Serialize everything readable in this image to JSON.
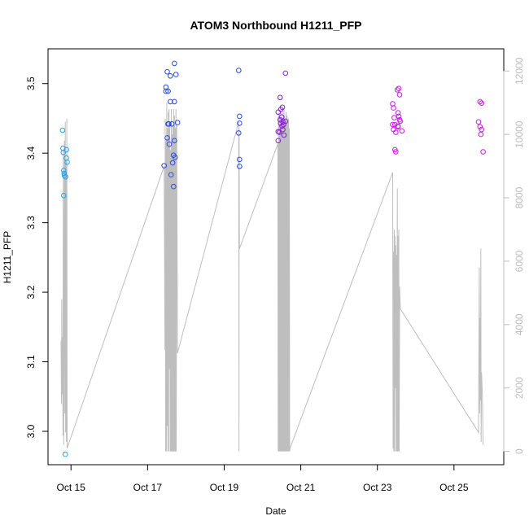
{
  "chart_data": {
    "type": "scatter",
    "title": "ATOM3 Northbound H1211_PFP",
    "xlabel": "Date",
    "ylabel": "H1211_PFP",
    "x_date_range": [
      "2016-10-14T09:36",
      "2016-10-26T07:12"
    ],
    "ylim": [
      2.952,
      3.55
    ],
    "y2lim": [
      -420,
      12700
    ],
    "x_tick_labels": [
      {
        "date": "2016-10-15",
        "label": "Oct 15"
      },
      {
        "date": "2016-10-17",
        "label": "Oct 17"
      },
      {
        "date": "2016-10-19",
        "label": "Oct 19"
      },
      {
        "date": "2016-10-21",
        "label": "Oct 21"
      },
      {
        "date": "2016-10-23",
        "label": "Oct 23"
      },
      {
        "date": "2016-10-25",
        "label": "Oct 25"
      }
    ],
    "y_ticks": [
      3.0,
      3.1,
      3.2,
      3.3,
      3.4,
      3.5
    ],
    "y_tick_labels": [
      "3.0",
      "3.1",
      "3.2",
      "3.3",
      "3.4",
      "3.5"
    ],
    "y2_ticks": [
      0,
      2000,
      4000,
      6000,
      8000,
      10000,
      12000
    ],
    "y2_tick_labels": [
      "0",
      "2000",
      "4000",
      "6000",
      "8000",
      "10000",
      "12000"
    ],
    "colors": {
      "altitude_line": "#bebebe",
      "axis": "#000000",
      "right_axis": "#bebebe",
      "flight_colors": [
        "#1fa8e8",
        "#2a4ad9",
        "#2a4ad9",
        "#8a1fd0",
        "#c71ae0",
        "#c71ae0"
      ]
    },
    "series": [
      {
        "values": [
          {
            "x": "2016-10-14T18:43",
            "y": 3.433
          },
          {
            "x": "2016-10-14T18:58",
            "y": 3.407
          },
          {
            "x": "2016-10-14T19:12",
            "y": 3.401
          },
          {
            "x": "2016-10-14T19:26",
            "y": 3.375
          },
          {
            "x": "2016-10-14T19:41",
            "y": 3.371
          },
          {
            "x": "2016-10-14T19:55",
            "y": 3.368
          },
          {
            "x": "2016-10-14T19:26",
            "y": 3.339
          },
          {
            "x": "2016-10-14T21:07",
            "y": 3.405
          },
          {
            "x": "2016-10-14T21:07",
            "y": 3.393
          },
          {
            "x": "2016-10-14T21:36",
            "y": 3.387
          },
          {
            "x": "2016-10-14T20:38",
            "y": 3.366
          },
          {
            "x": "2016-10-14T20:24",
            "y": 2.967
          }
        ]
      },
      {
        "values": [
          {
            "x": "2016-10-17T10:24",
            "y": 3.382
          },
          {
            "x": "2016-10-17T11:31",
            "y": 3.495
          },
          {
            "x": "2016-10-17T11:31",
            "y": 3.489
          },
          {
            "x": "2016-10-17T12:19",
            "y": 3.517
          },
          {
            "x": "2016-10-17T12:48",
            "y": 3.489
          },
          {
            "x": "2016-10-17T12:19",
            "y": 3.422
          },
          {
            "x": "2016-10-17T12:48",
            "y": 3.442
          },
          {
            "x": "2016-10-17T13:17",
            "y": 3.442
          },
          {
            "x": "2016-10-17T14:14",
            "y": 3.511
          },
          {
            "x": "2016-10-17T14:14",
            "y": 3.474
          },
          {
            "x": "2016-10-17T13:36",
            "y": 3.413
          },
          {
            "x": "2016-10-17T15:12",
            "y": 3.442
          },
          {
            "x": "2016-10-17T14:43",
            "y": 3.369
          },
          {
            "x": "2016-10-17T16:19",
            "y": 3.397
          },
          {
            "x": "2016-10-17T15:41",
            "y": 3.386
          },
          {
            "x": "2016-10-17T16:48",
            "y": 3.529
          },
          {
            "x": "2016-10-17T16:48",
            "y": 3.474
          },
          {
            "x": "2016-10-17T17:17",
            "y": 3.394
          },
          {
            "x": "2016-10-17T16:48",
            "y": 3.418
          },
          {
            "x": "2016-10-17T16:19",
            "y": 3.352
          },
          {
            "x": "2016-10-17T17:46",
            "y": 3.513
          },
          {
            "x": "2016-10-17T18:43",
            "y": 3.444
          }
        ]
      },
      {
        "values": [
          {
            "x": "2016-10-19T09:07",
            "y": 3.519
          },
          {
            "x": "2016-10-19T09:36",
            "y": 3.453
          },
          {
            "x": "2016-10-19T09:07",
            "y": 3.429
          },
          {
            "x": "2016-10-19T09:36",
            "y": 3.443
          },
          {
            "x": "2016-10-19T09:36",
            "y": 3.391
          },
          {
            "x": "2016-10-19T09:36",
            "y": 3.381
          }
        ]
      },
      {
        "values": [
          {
            "x": "2016-10-20T09:50",
            "y": 3.459
          },
          {
            "x": "2016-10-20T09:50",
            "y": 3.431
          },
          {
            "x": "2016-10-20T09:50",
            "y": 3.418
          },
          {
            "x": "2016-10-20T11:02",
            "y": 3.48
          },
          {
            "x": "2016-10-20T11:31",
            "y": 3.463
          },
          {
            "x": "2016-10-20T11:02",
            "y": 3.448
          },
          {
            "x": "2016-10-20T11:17",
            "y": 3.443
          },
          {
            "x": "2016-10-20T12:00",
            "y": 3.452
          },
          {
            "x": "2016-10-20T12:29",
            "y": 3.466
          },
          {
            "x": "2016-10-20T12:43",
            "y": 3.445
          },
          {
            "x": "2016-10-20T12:14",
            "y": 3.439
          },
          {
            "x": "2016-10-20T13:12",
            "y": 3.441
          },
          {
            "x": "2016-10-20T12:43",
            "y": 3.434
          },
          {
            "x": "2016-10-20T13:26",
            "y": 3.426
          },
          {
            "x": "2016-10-20T14:24",
            "y": 3.515
          },
          {
            "x": "2016-10-20T14:24",
            "y": 3.446
          },
          {
            "x": "2016-10-20T10:34",
            "y": 3.43
          }
        ]
      },
      {
        "values": [
          {
            "x": "2016-10-23T09:36",
            "y": 3.471
          },
          {
            "x": "2016-10-23T10:05",
            "y": 3.465
          },
          {
            "x": "2016-10-23T10:34",
            "y": 3.451
          },
          {
            "x": "2016-10-23T09:36",
            "y": 3.441
          },
          {
            "x": "2016-10-23T11:02",
            "y": 3.441
          },
          {
            "x": "2016-10-23T10:05",
            "y": 3.434
          },
          {
            "x": "2016-10-23T11:31",
            "y": 3.43
          },
          {
            "x": "2016-10-23T12:29",
            "y": 3.491
          },
          {
            "x": "2016-10-23T13:26",
            "y": 3.493
          },
          {
            "x": "2016-10-23T13:55",
            "y": 3.484
          },
          {
            "x": "2016-10-23T12:58",
            "y": 3.458
          },
          {
            "x": "2016-10-23T13:26",
            "y": 3.453
          },
          {
            "x": "2016-10-23T13:55",
            "y": 3.448
          },
          {
            "x": "2016-10-23T14:24",
            "y": 3.446
          },
          {
            "x": "2016-10-23T12:58",
            "y": 3.439
          },
          {
            "x": "2016-10-23T15:22",
            "y": 3.432
          },
          {
            "x": "2016-10-23T11:02",
            "y": 3.405
          },
          {
            "x": "2016-10-23T11:31",
            "y": 3.402
          },
          {
            "x": "2016-10-23T12:58",
            "y": 3.438
          }
        ]
      },
      {
        "values": [
          {
            "x": "2016-10-25T15:22",
            "y": 3.445
          },
          {
            "x": "2016-10-25T16:19",
            "y": 3.474
          },
          {
            "x": "2016-10-25T17:17",
            "y": 3.472
          },
          {
            "x": "2016-10-25T16:19",
            "y": 3.438
          },
          {
            "x": "2016-10-25T17:17",
            "y": 3.434
          },
          {
            "x": "2016-10-25T16:48",
            "y": 3.427
          },
          {
            "x": "2016-10-25T18:14",
            "y": 3.402
          }
        ]
      }
    ],
    "altitude_segments": [
      {
        "pts": [
          [
            "2016-10-14T17:46",
            3500
          ],
          [
            "2016-10-14T18:00",
            1500
          ],
          [
            "2016-10-14T18:14",
            4800
          ],
          [
            "2016-10-14T18:29",
            1800
          ],
          [
            "2016-10-14T18:43",
            3600
          ],
          [
            "2016-10-14T18:58",
            500
          ],
          [
            "2016-10-14T19:12",
            9500
          ],
          [
            "2016-10-14T19:26",
            200
          ],
          [
            "2016-10-14T19:41",
            5000
          ],
          [
            "2016-10-14T19:55",
            9800
          ],
          [
            "2016-10-14T20:10",
            1200
          ],
          [
            "2016-10-14T20:24",
            10400
          ],
          [
            "2016-10-14T20:38",
            600
          ],
          [
            "2016-10-14T20:53",
            9200
          ],
          [
            "2016-10-14T21:07",
            300
          ],
          [
            "2016-10-14T21:22",
            10500
          ],
          [
            "2016-10-14T21:36",
            100
          ]
        ]
      },
      {
        "pts": [
          [
            "2016-10-14T21:36",
            100
          ],
          [
            "2016-10-17T10:24",
            9000
          ],
          [
            "2016-10-17T10:53",
            3200
          ],
          [
            "2016-10-17T11:02",
            10500
          ],
          [
            "2016-10-17T11:17",
            0
          ],
          [
            "2016-10-17T11:31",
            9800
          ],
          [
            "2016-10-17T11:46",
            0
          ],
          [
            "2016-10-17T12:00",
            11000
          ],
          [
            "2016-10-17T12:14",
            800
          ],
          [
            "2016-10-17T12:29",
            10200
          ],
          [
            "2016-10-17T12:43",
            0
          ],
          [
            "2016-10-17T12:58",
            10700
          ],
          [
            "2016-10-17T13:12",
            0
          ],
          [
            "2016-10-17T13:26",
            10800
          ],
          [
            "2016-10-17T13:41",
            2600
          ],
          [
            "2016-10-17T13:55",
            10300
          ],
          [
            "2016-10-17T14:10",
            0
          ],
          [
            "2016-10-17T14:24",
            9500
          ],
          [
            "2016-10-17T14:38",
            0
          ],
          [
            "2016-10-17T14:53",
            10800
          ],
          [
            "2016-10-17T15:07",
            0
          ],
          [
            "2016-10-17T15:22",
            10000
          ],
          [
            "2016-10-17T15:36",
            0
          ],
          [
            "2016-10-17T15:50",
            10300
          ],
          [
            "2016-10-17T16:05",
            0
          ],
          [
            "2016-10-17T16:19",
            10800
          ],
          [
            "2016-10-17T16:34",
            0
          ],
          [
            "2016-10-17T16:48",
            10600
          ],
          [
            "2016-10-17T17:02",
            0
          ],
          [
            "2016-10-17T17:17",
            10200
          ],
          [
            "2016-10-17T17:31",
            0
          ],
          [
            "2016-10-17T17:46",
            10800
          ],
          [
            "2016-10-17T18:00",
            0
          ],
          [
            "2016-10-17T18:14",
            10300
          ],
          [
            "2016-10-17T18:43",
            3100
          ]
        ]
      },
      {
        "pts": [
          [
            "2016-10-17T18:43",
            3100
          ],
          [
            "2016-10-19T09:07",
            10400
          ],
          [
            "2016-10-19T09:14",
            0
          ],
          [
            "2016-10-19T09:22",
            10200
          ],
          [
            "2016-10-19T09:29",
            7000
          ],
          [
            "2016-10-19T09:36",
            6400
          ]
        ]
      },
      {
        "pts": [
          [
            "2016-10-19T09:36",
            6400
          ],
          [
            "2016-10-20T09:36",
            9700
          ],
          [
            "2016-10-20T09:50",
            0
          ],
          [
            "2016-10-20T10:05",
            10700
          ],
          [
            "2016-10-20T10:19",
            0
          ],
          [
            "2016-10-20T10:34",
            10600
          ],
          [
            "2016-10-20T10:48",
            0
          ],
          [
            "2016-10-20T11:02",
            10300
          ],
          [
            "2016-10-20T11:17",
            0
          ],
          [
            "2016-10-20T11:31",
            10800
          ],
          [
            "2016-10-20T11:46",
            0
          ],
          [
            "2016-10-20T12:00",
            10500
          ],
          [
            "2016-10-20T12:14",
            0
          ],
          [
            "2016-10-20T12:29",
            10700
          ],
          [
            "2016-10-20T12:43",
            0
          ],
          [
            "2016-10-20T12:58",
            10400
          ],
          [
            "2016-10-20T13:12",
            0
          ],
          [
            "2016-10-20T13:26",
            10800
          ],
          [
            "2016-10-20T13:41",
            0
          ],
          [
            "2016-10-20T13:55",
            10600
          ],
          [
            "2016-10-20T14:10",
            0
          ],
          [
            "2016-10-20T14:24",
            10500
          ],
          [
            "2016-10-20T14:38",
            0
          ],
          [
            "2016-10-20T14:53",
            10700
          ],
          [
            "2016-10-20T15:07",
            0
          ],
          [
            "2016-10-20T15:22",
            10600
          ],
          [
            "2016-10-20T15:36",
            0
          ],
          [
            "2016-10-20T15:50",
            10400
          ],
          [
            "2016-10-20T16:05",
            0
          ],
          [
            "2016-10-20T16:19",
            10500
          ],
          [
            "2016-10-20T16:34",
            0
          ],
          [
            "2016-10-20T16:48",
            10200
          ],
          [
            "2016-10-20T17:02",
            0
          ],
          [
            "2016-10-20T17:17",
            100
          ]
        ]
      },
      {
        "pts": [
          [
            "2016-10-20T17:17",
            100
          ],
          [
            "2016-10-23T09:36",
            8800
          ],
          [
            "2016-10-23T09:50",
            100
          ],
          [
            "2016-10-23T10:05",
            6300
          ],
          [
            "2016-10-23T10:19",
            0
          ],
          [
            "2016-10-23T10:34",
            7000
          ],
          [
            "2016-10-23T10:48",
            0
          ],
          [
            "2016-10-23T11:02",
            6800
          ],
          [
            "2016-10-23T11:17",
            2000
          ],
          [
            "2016-10-23T11:31",
            6500
          ],
          [
            "2016-10-23T11:46",
            0
          ],
          [
            "2016-10-23T12:00",
            6200
          ],
          [
            "2016-10-23T12:14",
            0
          ],
          [
            "2016-10-23T12:29",
            8300
          ],
          [
            "2016-10-23T12:43",
            0
          ],
          [
            "2016-10-23T12:58",
            6800
          ],
          [
            "2016-10-23T13:12",
            0
          ],
          [
            "2016-10-23T13:26",
            7000
          ],
          [
            "2016-10-23T13:41",
            0
          ],
          [
            "2016-10-23T13:55",
            5200
          ],
          [
            "2016-10-23T14:24",
            4500
          ],
          [
            "2016-10-25T15:22",
            600
          ],
          [
            "2016-10-25T15:50",
            5800
          ],
          [
            "2016-10-25T16:05",
            1200
          ],
          [
            "2016-10-25T16:19",
            4200
          ],
          [
            "2016-10-25T16:34",
            1600
          ],
          [
            "2016-10-25T16:48",
            6400
          ],
          [
            "2016-10-25T17:02",
            300
          ],
          [
            "2016-10-25T17:17",
            2500
          ],
          [
            "2016-10-25T17:46",
            1800
          ],
          [
            "2016-10-25T18:14",
            200
          ]
        ]
      }
    ]
  }
}
